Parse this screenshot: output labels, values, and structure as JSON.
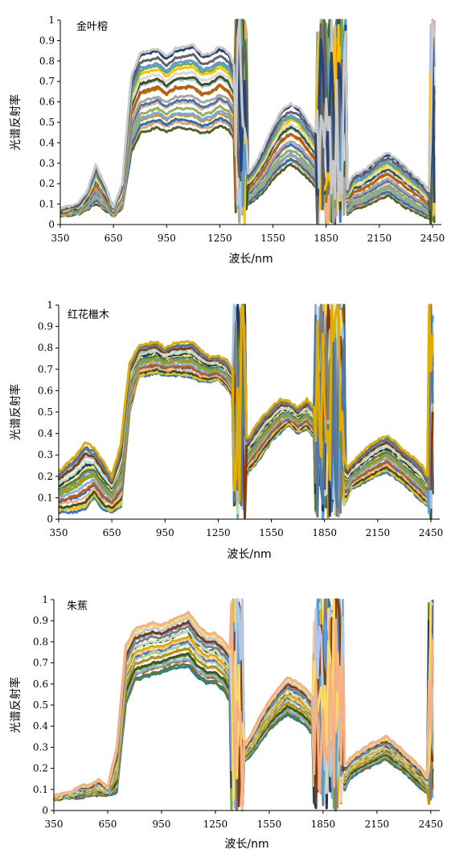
{
  "chart_data": [
    {
      "type": "line",
      "title": "金叶榕",
      "xlabel": "波长/nm",
      "ylabel": "光谱反射率",
      "xlim": [
        350,
        2500
      ],
      "ylim": [
        0,
        1
      ],
      "x_ticks": [
        "350",
        "650",
        "950",
        "1250",
        "1550",
        "1850",
        "2150",
        "2450"
      ],
      "y_ticks": [
        "0",
        "0.1",
        "0.2",
        "0.3",
        "0.4",
        "0.5",
        "0.6",
        "0.7",
        "0.8",
        "0.9",
        "1"
      ],
      "grid": false,
      "series_count": 20,
      "palette": [
        "#4f6228",
        "#e4a070",
        "#2e6fae",
        "#c99a2e",
        "#7da7d9",
        "#8fb25a",
        "#f4b183",
        "#4575b4",
        "#a5a5a5",
        "#9e7a1c",
        "#c55a11",
        "#b4c7e7",
        "#385723",
        "#d9d9d9",
        "#ffc000",
        "#70ad47",
        "#5b9bd5",
        "#636363",
        "#264478",
        "#c9c9c9"
      ],
      "envelope": {
        "x": [
          350,
          450,
          500,
          550,
          600,
          650,
          700,
          750,
          800,
          900,
          950,
          1000,
          1100,
          1150,
          1200,
          1250,
          1300,
          1340,
          1360,
          1380,
          1420,
          1450,
          1500,
          1550,
          1600,
          1650,
          1700,
          1750,
          1790,
          1800,
          1950,
          1980,
          2000,
          2050,
          2100,
          2150,
          2200,
          2250,
          2300,
          2350,
          2400,
          2430,
          2450
        ],
        "low": [
          0.04,
          0.05,
          0.07,
          0.1,
          0.07,
          0.04,
          0.08,
          0.35,
          0.44,
          0.47,
          0.45,
          0.47,
          0.46,
          0.44,
          0.45,
          0.48,
          0.46,
          0.4,
          0.3,
          0.08,
          0.1,
          0.12,
          0.16,
          0.22,
          0.26,
          0.29,
          0.26,
          0.22,
          0.18,
          0.04,
          0.03,
          0.05,
          0.07,
          0.08,
          0.1,
          0.12,
          0.14,
          0.11,
          0.08,
          0.06,
          0.04,
          0.03,
          0.0
        ],
        "high": [
          0.08,
          0.1,
          0.16,
          0.29,
          0.2,
          0.08,
          0.2,
          0.72,
          0.84,
          0.86,
          0.82,
          0.86,
          0.88,
          0.83,
          0.84,
          0.87,
          0.84,
          0.76,
          0.6,
          0.22,
          0.26,
          0.3,
          0.38,
          0.48,
          0.56,
          0.59,
          0.57,
          0.5,
          0.45,
          0.2,
          0.13,
          0.2,
          0.24,
          0.26,
          0.29,
          0.33,
          0.35,
          0.32,
          0.28,
          0.24,
          0.2,
          0.16,
          0.1
        ]
      }
    },
    {
      "type": "line",
      "title": "红花檵木",
      "xlabel": "波长/nm",
      "ylabel": "光谱反射率",
      "xlim": [
        350,
        2500
      ],
      "ylim": [
        0,
        1
      ],
      "x_ticks": [
        "350",
        "650",
        "950",
        "1250",
        "1550",
        "1850",
        "2150",
        "2450"
      ],
      "y_ticks": [
        "0",
        "0.1",
        "0.2",
        "0.3",
        "0.4",
        "0.5",
        "0.6",
        "0.7",
        "0.8",
        "0.9",
        "1"
      ],
      "grid": false,
      "series_count": 20,
      "palette": [
        "#4472c4",
        "#a9d18e",
        "#ffc000",
        "#385723",
        "#f4b183",
        "#2e75b6",
        "#c55a11",
        "#8faadc",
        "#70ad47",
        "#bf9000",
        "#5b9bd5",
        "#548235",
        "#ffd966",
        "#203864",
        "#c5e0b4",
        "#9dc3e6",
        "#843c0c",
        "#7f7f7f",
        "#4e79a7",
        "#e2ac00"
      ],
      "envelope": {
        "x": [
          350,
          450,
          500,
          550,
          600,
          650,
          700,
          750,
          800,
          900,
          950,
          1000,
          1100,
          1150,
          1200,
          1250,
          1300,
          1340,
          1360,
          1380,
          1420,
          1450,
          1500,
          1550,
          1600,
          1650,
          1700,
          1750,
          1790,
          1800,
          1950,
          1980,
          2000,
          2050,
          2100,
          2150,
          2200,
          2250,
          2300,
          2350,
          2400,
          2430,
          2450
        ],
        "low": [
          0.03,
          0.03,
          0.04,
          0.1,
          0.04,
          0.03,
          0.05,
          0.5,
          0.66,
          0.68,
          0.67,
          0.67,
          0.66,
          0.64,
          0.64,
          0.65,
          0.61,
          0.55,
          0.45,
          0.1,
          0.22,
          0.24,
          0.3,
          0.36,
          0.4,
          0.44,
          0.4,
          0.42,
          0.38,
          0.05,
          0.03,
          0.1,
          0.14,
          0.16,
          0.18,
          0.2,
          0.22,
          0.19,
          0.16,
          0.12,
          0.08,
          0.06,
          0.0
        ],
        "high": [
          0.22,
          0.3,
          0.36,
          0.33,
          0.27,
          0.2,
          0.35,
          0.73,
          0.81,
          0.83,
          0.8,
          0.82,
          0.83,
          0.79,
          0.76,
          0.76,
          0.74,
          0.68,
          0.6,
          0.38,
          0.38,
          0.42,
          0.48,
          0.52,
          0.56,
          0.55,
          0.52,
          0.56,
          0.52,
          0.38,
          0.3,
          0.24,
          0.26,
          0.3,
          0.34,
          0.37,
          0.39,
          0.36,
          0.32,
          0.29,
          0.25,
          0.2,
          0.15
        ]
      }
    },
    {
      "type": "line",
      "title": "朱蕉",
      "xlabel": "波长/nm",
      "ylabel": "光谱反射率",
      "xlim": [
        350,
        2500
      ],
      "ylim": [
        0,
        1
      ],
      "x_ticks": [
        "350",
        "650",
        "950",
        "1250",
        "1550",
        "1850",
        "2150",
        "2450"
      ],
      "y_ticks": [
        "0",
        "0.1",
        "0.2",
        "0.3",
        "0.4",
        "0.5",
        "0.6",
        "0.7",
        "0.8",
        "0.9",
        "1"
      ],
      "grid": false,
      "series_count": 20,
      "palette": [
        "#2e75b6",
        "#548235",
        "#c55a11",
        "#8faadc",
        "#70ad47",
        "#385723",
        "#9dc3e6",
        "#bf9000",
        "#a9d18e",
        "#4472c4",
        "#f8cbad",
        "#e2ac00",
        "#203864",
        "#c5e0b4",
        "#7f7f7f",
        "#5b9bd5",
        "#843c0c",
        "#b4c7e7",
        "#ffd966",
        "#f4b183"
      ],
      "envelope": {
        "x": [
          350,
          450,
          500,
          550,
          600,
          650,
          700,
          750,
          800,
          900,
          950,
          1000,
          1100,
          1150,
          1200,
          1250,
          1300,
          1340,
          1360,
          1380,
          1420,
          1450,
          1500,
          1550,
          1600,
          1650,
          1700,
          1750,
          1790,
          1800,
          1950,
          1980,
          2000,
          2050,
          2100,
          2150,
          2200,
          2250,
          2300,
          2350,
          2400,
          2430,
          2450
        ],
        "low": [
          0.05,
          0.06,
          0.06,
          0.07,
          0.07,
          0.07,
          0.08,
          0.5,
          0.61,
          0.64,
          0.65,
          0.67,
          0.68,
          0.63,
          0.6,
          0.6,
          0.56,
          0.5,
          0.45,
          0.22,
          0.24,
          0.26,
          0.32,
          0.38,
          0.42,
          0.45,
          0.43,
          0.4,
          0.36,
          0.05,
          0.04,
          0.12,
          0.15,
          0.18,
          0.2,
          0.22,
          0.24,
          0.21,
          0.18,
          0.14,
          0.1,
          0.08,
          0.0
        ],
        "high": [
          0.07,
          0.09,
          0.12,
          0.12,
          0.15,
          0.11,
          0.3,
          0.78,
          0.86,
          0.89,
          0.88,
          0.9,
          0.94,
          0.88,
          0.84,
          0.84,
          0.8,
          0.75,
          0.7,
          0.36,
          0.32,
          0.36,
          0.45,
          0.52,
          0.58,
          0.63,
          0.61,
          0.58,
          0.54,
          0.32,
          0.25,
          0.22,
          0.25,
          0.28,
          0.31,
          0.33,
          0.35,
          0.32,
          0.28,
          0.24,
          0.2,
          0.16,
          0.12
        ]
      }
    }
  ]
}
